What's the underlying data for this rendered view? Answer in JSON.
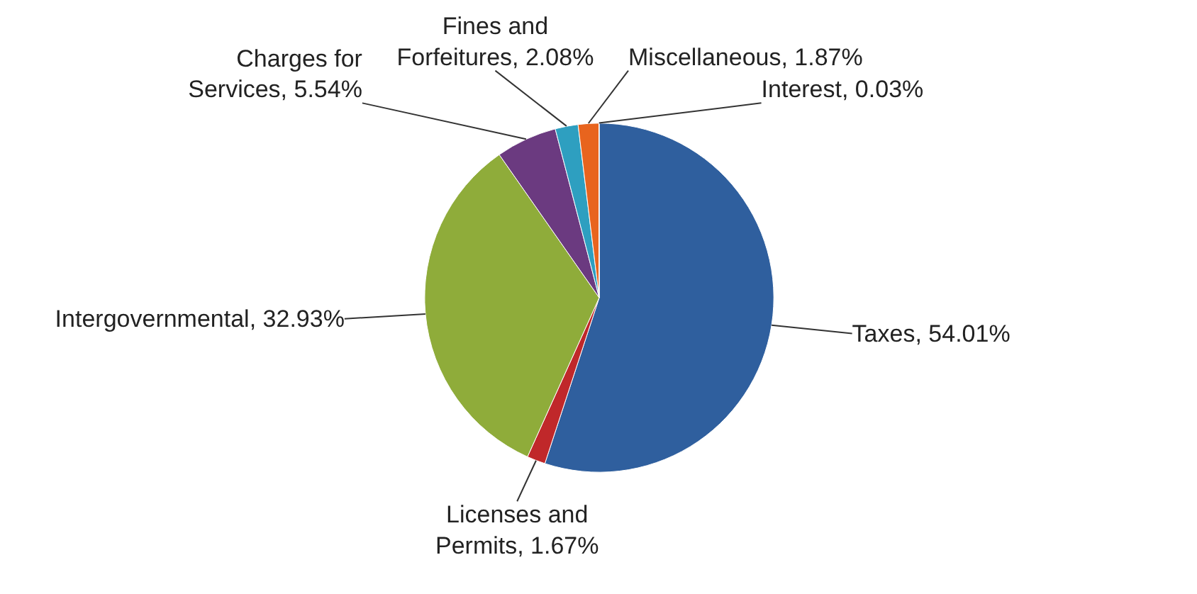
{
  "chart_data": {
    "type": "pie",
    "categories": [
      "Taxes",
      "Licenses and Permits",
      "Intergovernmental",
      "Charges for Services",
      "Fines and Forfeitures",
      "Miscellaneous",
      "Interest"
    ],
    "values": [
      54.01,
      1.67,
      32.93,
      5.54,
      2.08,
      1.87,
      0.03
    ],
    "value_labels": [
      "54.01%",
      "1.67%",
      "32.93%",
      "5.54%",
      "2.08%",
      "1.87%",
      "0.03%"
    ],
    "colors": [
      "#2f5f9e",
      "#c0282a",
      "#8fac3a",
      "#6b3a80",
      "#2e9fc0",
      "#e8641e",
      "#c8c8c8"
    ],
    "legend": false
  }
}
